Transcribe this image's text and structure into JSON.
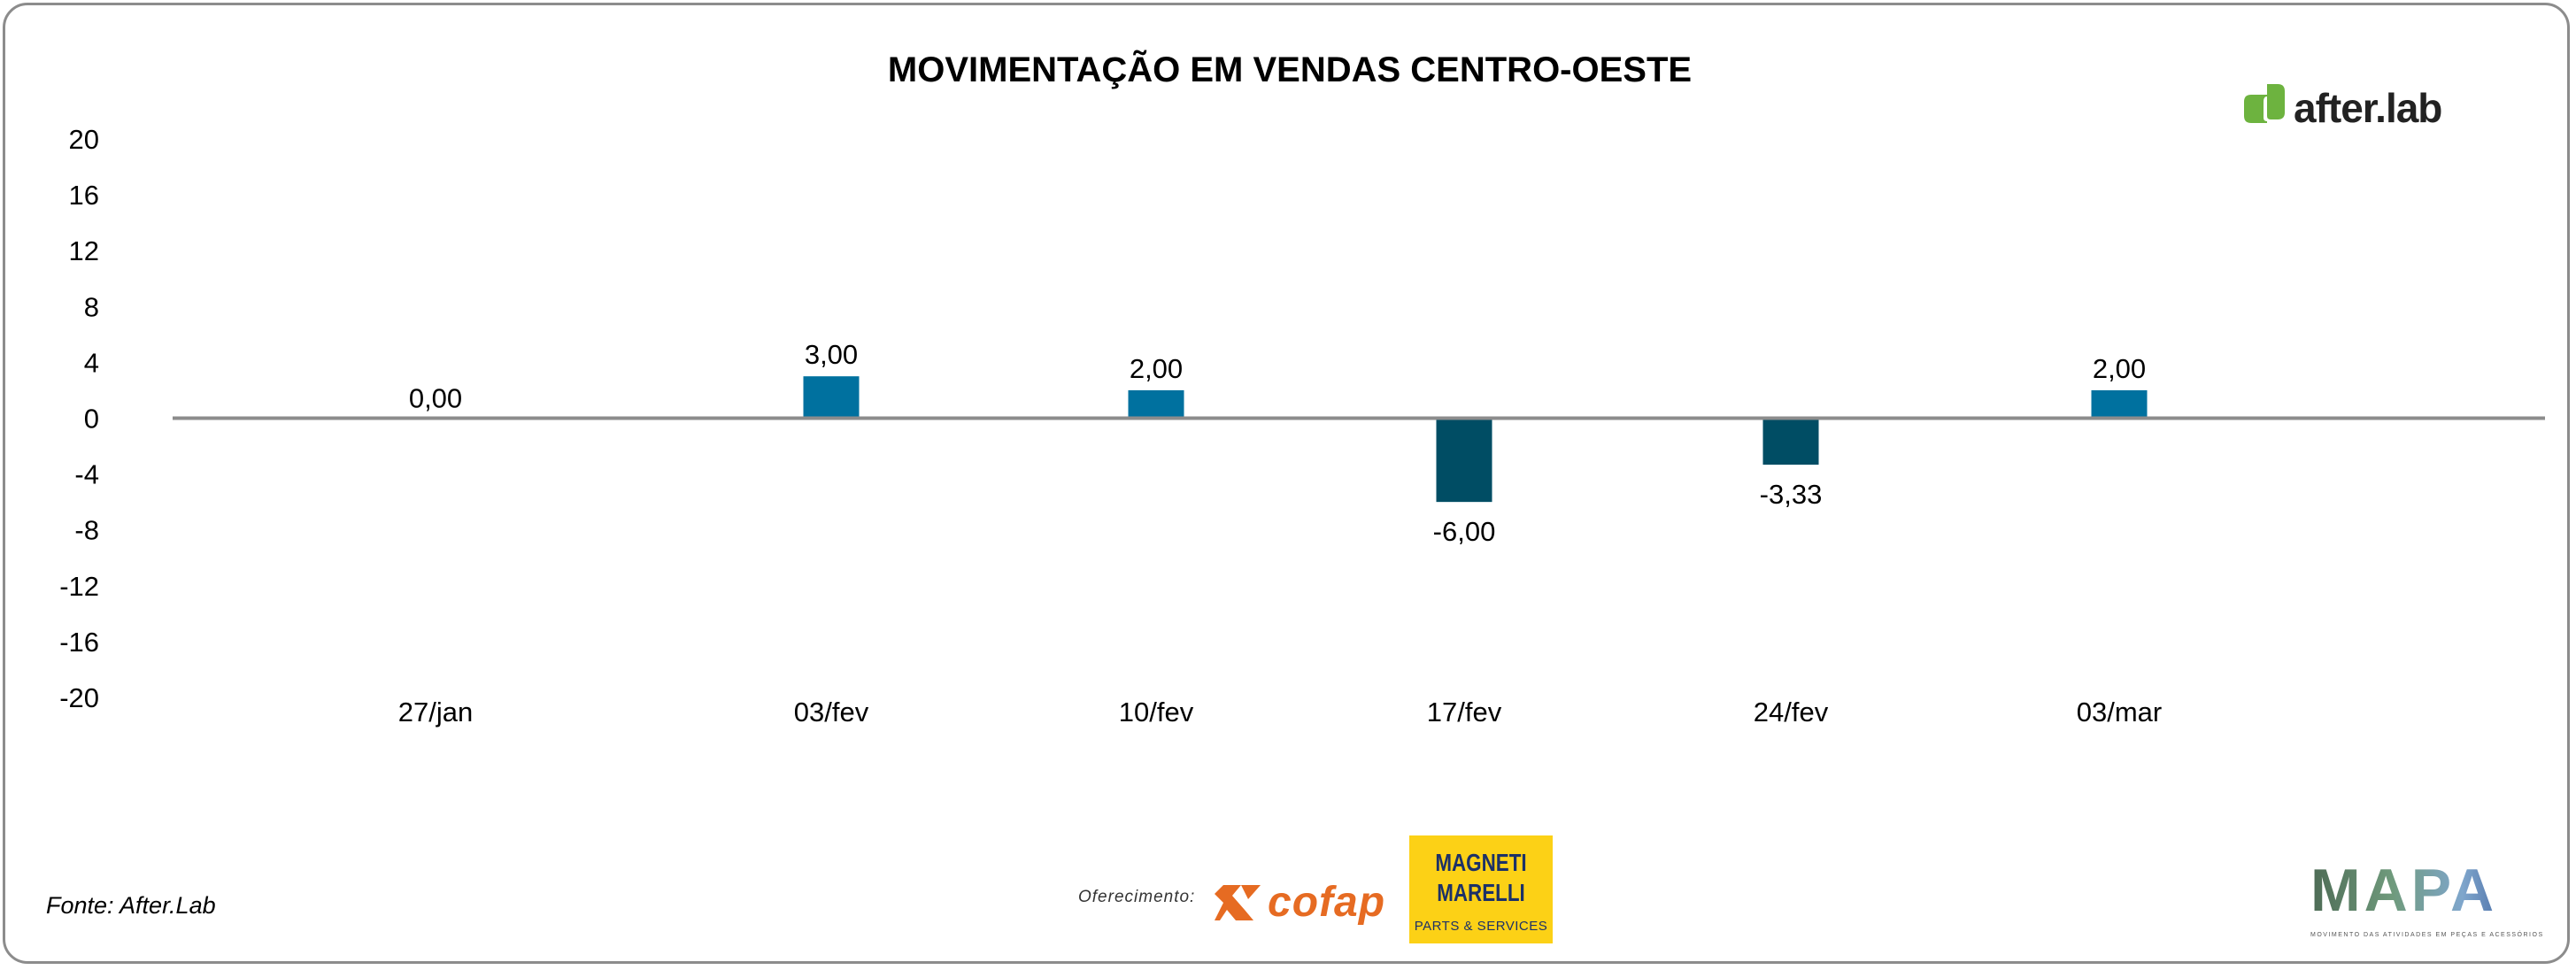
{
  "chart_data": {
    "type": "bar",
    "title": "MOVIMENTAÇÃO EM VENDAS CENTRO-OESTE",
    "categories": [
      "27/jan",
      "03/fev",
      "10/fev",
      "17/fev",
      "24/fev",
      "03/mar"
    ],
    "values": [
      0.0,
      3.0,
      2.0,
      -6.0,
      -3.33,
      2.0
    ],
    "data_labels": [
      "0,00",
      "3,00",
      "2,00",
      "-6,00",
      "-3,33",
      "2,00"
    ],
    "ylim": [
      -20,
      20
    ],
    "yticks": [
      20,
      16,
      12,
      8,
      4,
      0,
      -4,
      -8,
      -12,
      -16,
      -20
    ],
    "xlabel": "",
    "ylabel": "",
    "grid": false,
    "colors": {
      "positive": "#00719F",
      "negative": "#004D64",
      "axis": "#8c8c8c"
    }
  },
  "footer": {
    "source": "Fonte: After.Lab",
    "offered_by": "Oferecimento:"
  },
  "logos": {
    "afterlab": "after.lab",
    "cofap": "cofap",
    "magneti_marelli": "MAGNETI MARELLI",
    "magneti_marelli_sub": "PARTS & SERVICES",
    "mapa": "MAPA",
    "mapa_sub": "MOVIMENTO DAS ATIVIDADES EM PEÇAS E ACESSÓRIOS"
  }
}
